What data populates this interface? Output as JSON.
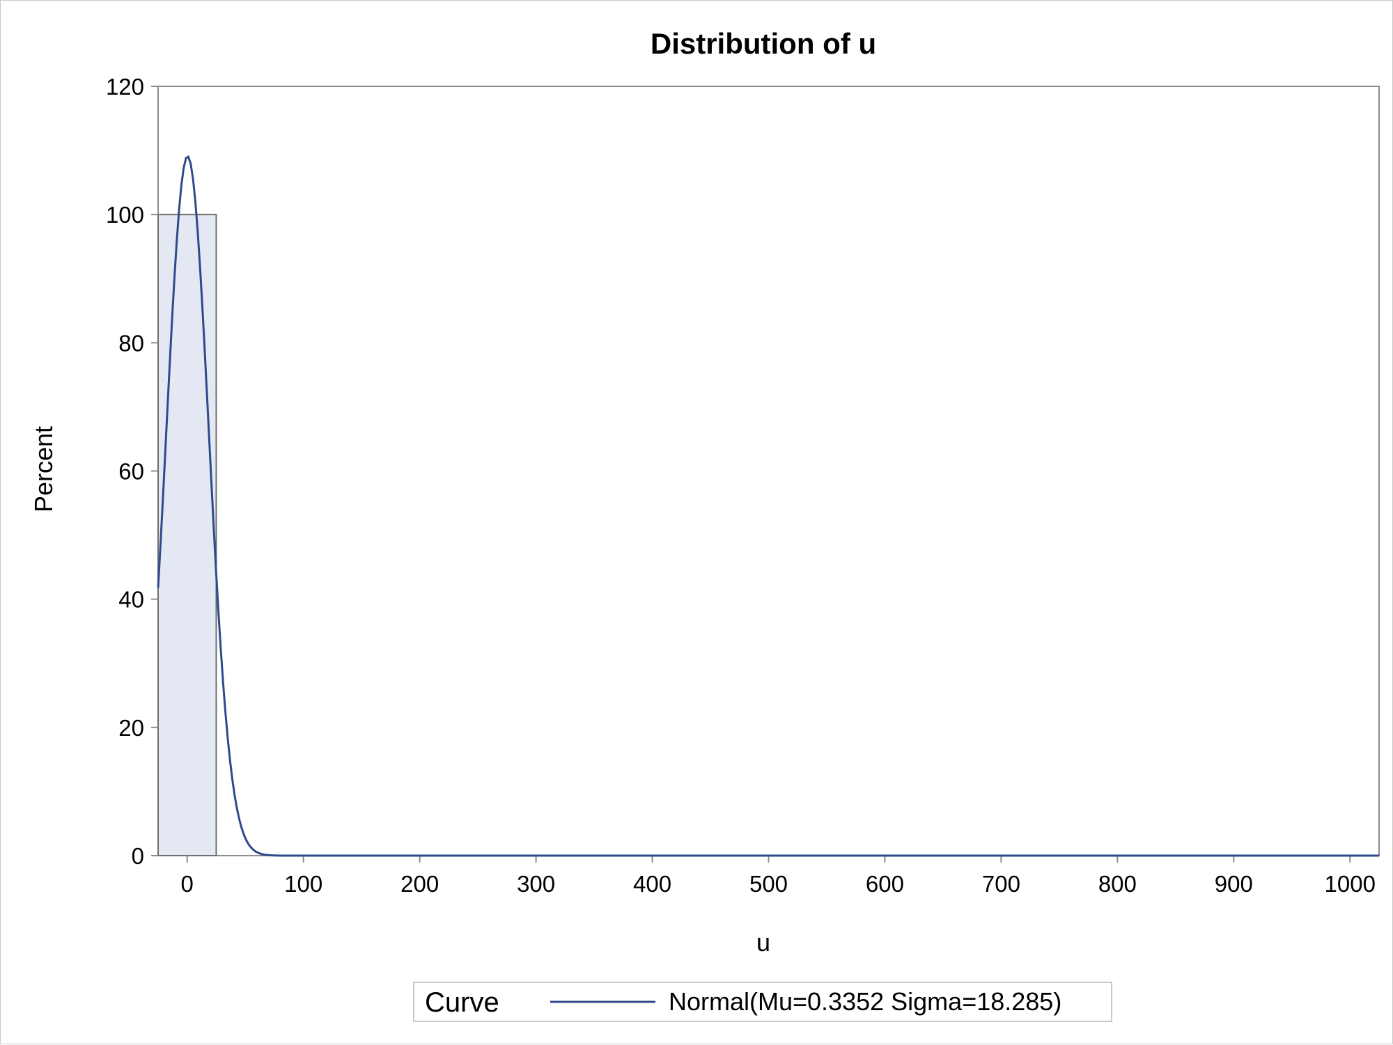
{
  "chart_data": {
    "type": "bar",
    "title": "Distribution of u",
    "xlabel": "u",
    "ylabel": "Percent",
    "xlim": [
      -25,
      1025
    ],
    "ylim": [
      0,
      120
    ],
    "x_ticks": [
      0,
      100,
      200,
      300,
      400,
      500,
      600,
      700,
      800,
      900,
      1000
    ],
    "y_ticks": [
      0,
      20,
      40,
      60,
      80,
      100,
      120
    ],
    "histogram": {
      "bins": [
        {
          "x_start": -25,
          "x_end": 25,
          "value": 100
        }
      ]
    },
    "series": [
      {
        "name": "Normal(Mu=0.3352 Sigma=18.285)",
        "type": "line",
        "distribution": "normal",
        "mu": 0.3352,
        "sigma": 18.285,
        "x_range": [
          -25,
          1025
        ]
      }
    ],
    "legend": {
      "title": "Curve",
      "position": "bottom"
    },
    "grid": false,
    "colors": {
      "bar_fill": "#e3e8f2",
      "bar_stroke": "#6e6e6e",
      "curve": "#2f4a8c",
      "frame": "#8c8c8c"
    }
  }
}
